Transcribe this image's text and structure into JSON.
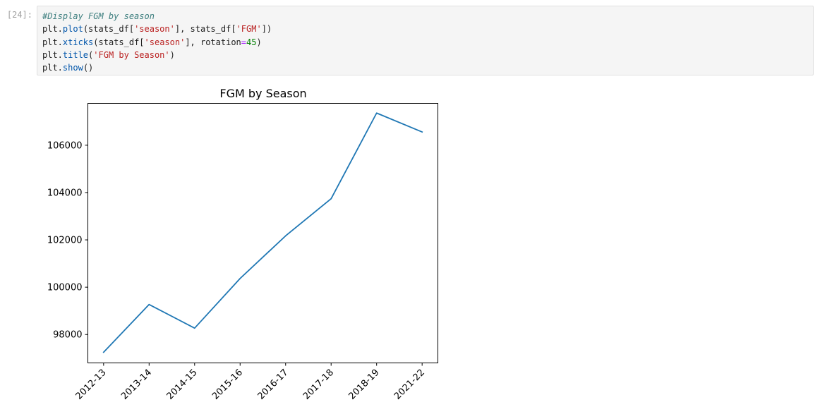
{
  "cell": {
    "prompt": "[24]:",
    "code": {
      "line1": "#Display FGM by season",
      "line2": {
        "obj": "plt.",
        "fn": "plot",
        "a": "(stats_df[",
        "s1": "'season'",
        "b": "], stats_df[",
        "s2": "'FGM'",
        "c": "])"
      },
      "line3": {
        "obj": "plt.",
        "fn": "xticks",
        "a": "(stats_df[",
        "s1": "'season'",
        "b": "], rotation",
        "eq": "=",
        "num": "45",
        "c": ")"
      },
      "line4": {
        "obj": "plt.",
        "fn": "title",
        "a": "(",
        "s1": "'FGM by Season'",
        "c": ")"
      },
      "line5": {
        "obj": "plt.",
        "fn": "show",
        "c": "()"
      }
    }
  },
  "chart_data": {
    "type": "line",
    "title": "FGM by Season",
    "xlabel": "",
    "ylabel": "",
    "categories": [
      "2012-13",
      "2013-14",
      "2014-15",
      "2015-16",
      "2016-17",
      "2017-18",
      "2018-19",
      "2021-22"
    ],
    "values": [
      97250,
      99270,
      98270,
      100370,
      102170,
      103740,
      107360,
      106560
    ],
    "yticks": [
      98000,
      100000,
      102000,
      104000,
      106000
    ],
    "ylim": [
      96800,
      107770
    ],
    "grid": false,
    "line_color": "#1f77b4"
  }
}
